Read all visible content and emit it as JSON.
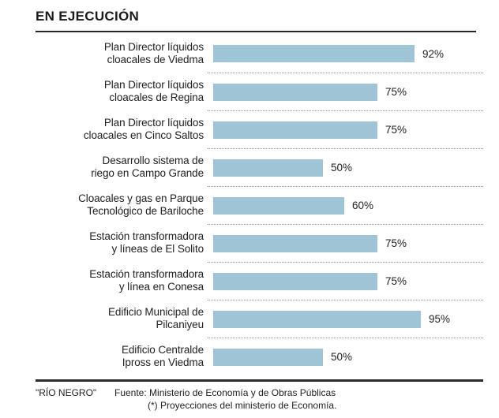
{
  "header": {
    "title": "EN EJECUCIÓN"
  },
  "chart_data": {
    "type": "bar",
    "orientation": "horizontal",
    "title": "EN EJECUCIÓN",
    "unit": "percent",
    "xlim": [
      0,
      100
    ],
    "grid": "dotted horizontal separators between rows",
    "legend": "none",
    "bar_color": "#9ec5d6",
    "categories": [
      "Plan Director líquidos cloacales de Viedma",
      "Plan Director líquidos cloacales de Regina",
      "Plan Director líquidos cloacales en Cinco Saltos",
      "Desarrollo sistema de riego en Campo Grande",
      "Cloacales y gas en Parque Tecnológico de Bariloche",
      "Estación transformadora y líneas de El Solito",
      "Estación transformadora y línea en Conesa",
      "Edificio Municipal de Pilcaniyeu",
      "Edificio Centralde Ipross en Viedma"
    ],
    "category_lines": [
      [
        "Plan Director líquidos",
        "cloacales de Viedma"
      ],
      [
        "Plan Director líquidos",
        "cloacales de Regina"
      ],
      [
        "Plan Director líquidos",
        "cloacales en Cinco Saltos"
      ],
      [
        "Desarrollo sistema de",
        "riego en Campo Grande"
      ],
      [
        "Cloacales y gas en Parque",
        "Tecnológico de Bariloche"
      ],
      [
        "Estación transformadora",
        "y líneas de El Solito"
      ],
      [
        "Estación transformadora",
        "y línea en Conesa"
      ],
      [
        "Edificio Municipal de",
        "Pilcaniyeu"
      ],
      [
        "Edificio Centralde",
        "Ipross en Viedma"
      ]
    ],
    "values": [
      92,
      75,
      75,
      50,
      60,
      75,
      75,
      95,
      50
    ],
    "value_labels": [
      "92%",
      "75%",
      "75%",
      "50%",
      "60%",
      "75%",
      "75%",
      "95%",
      "50%"
    ]
  },
  "footer": {
    "credit": "\"RÍO NEGRO\"",
    "source_line1": "Fuente: Ministerio de Economía y de Obras Públicas",
    "source_line2": "(*) Proyecciones del ministerio de Economía."
  },
  "colors": {
    "bar": "#9ec5d6",
    "text": "#1f1f1f",
    "rule": "#2a2a2a",
    "separator": "#8f8f8f"
  }
}
